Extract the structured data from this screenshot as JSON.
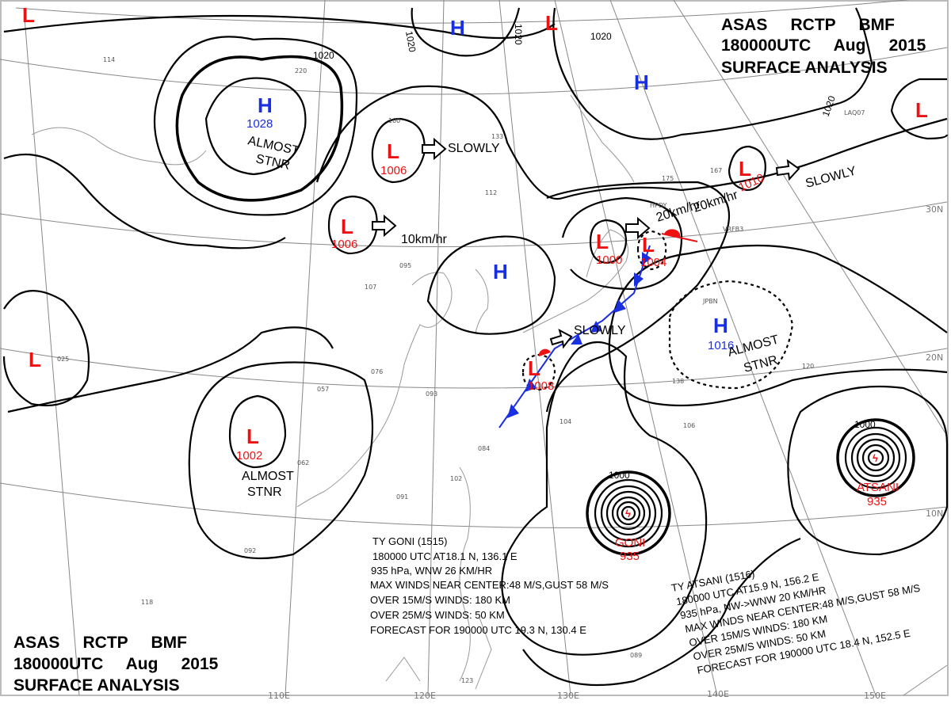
{
  "header": {
    "line1": "ASAS     RCTP     BMF",
    "line2": "180000UTC     Aug     2015",
    "line3": "SURFACE  ANALYSIS"
  },
  "footer": {
    "line1": "ASAS     RCTP     BMF",
    "line2": "180000UTC     Aug     2015",
    "line3": "SURFACE  ANALYSIS"
  },
  "colors": {
    "high": "#1a2fe0",
    "low": "#ee1111",
    "cold_front": "#1a2fe0",
    "warm_front": "#ee1111",
    "isobar": "#000000",
    "grid": "#888888"
  },
  "latitude_labels": [
    "30N",
    "20N",
    "10N"
  ],
  "longitude_labels": [
    "110E",
    "120E",
    "130E",
    "140E",
    "150E"
  ],
  "pressure_centers": [
    {
      "type": "H",
      "value": "1028"
    },
    {
      "type": "H",
      "value": ""
    },
    {
      "type": "H",
      "value": ""
    },
    {
      "type": "H",
      "value": ""
    },
    {
      "type": "H",
      "value": "1016"
    },
    {
      "type": "L",
      "value": "1006"
    },
    {
      "type": "L",
      "value": "1006"
    },
    {
      "type": "L",
      "value": "1002"
    },
    {
      "type": "L",
      "value": "1000"
    },
    {
      "type": "L",
      "value": "1004"
    },
    {
      "type": "L",
      "value": "1008"
    },
    {
      "type": "L",
      "value": "1010"
    },
    {
      "type": "L",
      "value": ""
    },
    {
      "type": "L",
      "value": ""
    },
    {
      "type": "L",
      "value": ""
    },
    {
      "type": "L",
      "value": ""
    }
  ],
  "typhoon_centers": [
    {
      "name": "GONI",
      "value": "935"
    },
    {
      "name": "ATSANI",
      "value": "935"
    }
  ],
  "isobar_labels": [
    "1020",
    "1020",
    "1020",
    "1020",
    "1020",
    "1000",
    "1000"
  ],
  "annotations": {
    "almost_stnr_1": [
      "ALMOST",
      "STNR"
    ],
    "almost_stnr_2": [
      "ALMOST",
      "STNR"
    ],
    "almost_stnr_3": [
      "ALMOST",
      "STNR"
    ],
    "slowly_1": "SLOWLY",
    "slowly_2": "SLOWLY",
    "slowly_3": "SLOWLY",
    "speed_1": "10km/hr",
    "speed_2": "20km/hr",
    "speed_3": "20km/hr"
  },
  "typhoon_goni": [
    "TY  GONI  (1515)",
    "180000 UTC  AT18.1 N, 136.1 E",
    "935 hPa, WNW  26 KM/HR",
    "MAX WINDS NEAR CENTER:48 M/S,GUST 58 M/S",
    "OVER 15M/S WINDS: 180 KM",
    "OVER 25M/S WINDS: 50 KM",
    "FORECAST FOR 190000 UTC 19.3 N, 130.4 E"
  ],
  "typhoon_atsani": [
    "TY  ATSANI  (1516)",
    "180000 UTC  AT15.9 N, 156.2 E",
    "935 hPa, NW->WNW  20 KM/HR",
    "MAX WINDS NEAR CENTER:48 M/S,GUST 58 M/S",
    "OVER 15M/S WINDS: 180 KM",
    "OVER 25M/S WINDS: 50 KM",
    "FORECAST FOR 190000 UTC 18.4 N, 152.5 E"
  ],
  "station_labels": [
    "HPDY",
    "VRFB3",
    "JPBN",
    "LAQ07",
    "095",
    "112",
    "133",
    "076",
    "093",
    "102",
    "091",
    "062",
    "057",
    "107",
    "106",
    "104",
    "084",
    "175",
    "167",
    "120",
    "138",
    "089",
    "123",
    "092",
    "118",
    "114",
    "220",
    "100",
    "025"
  ]
}
